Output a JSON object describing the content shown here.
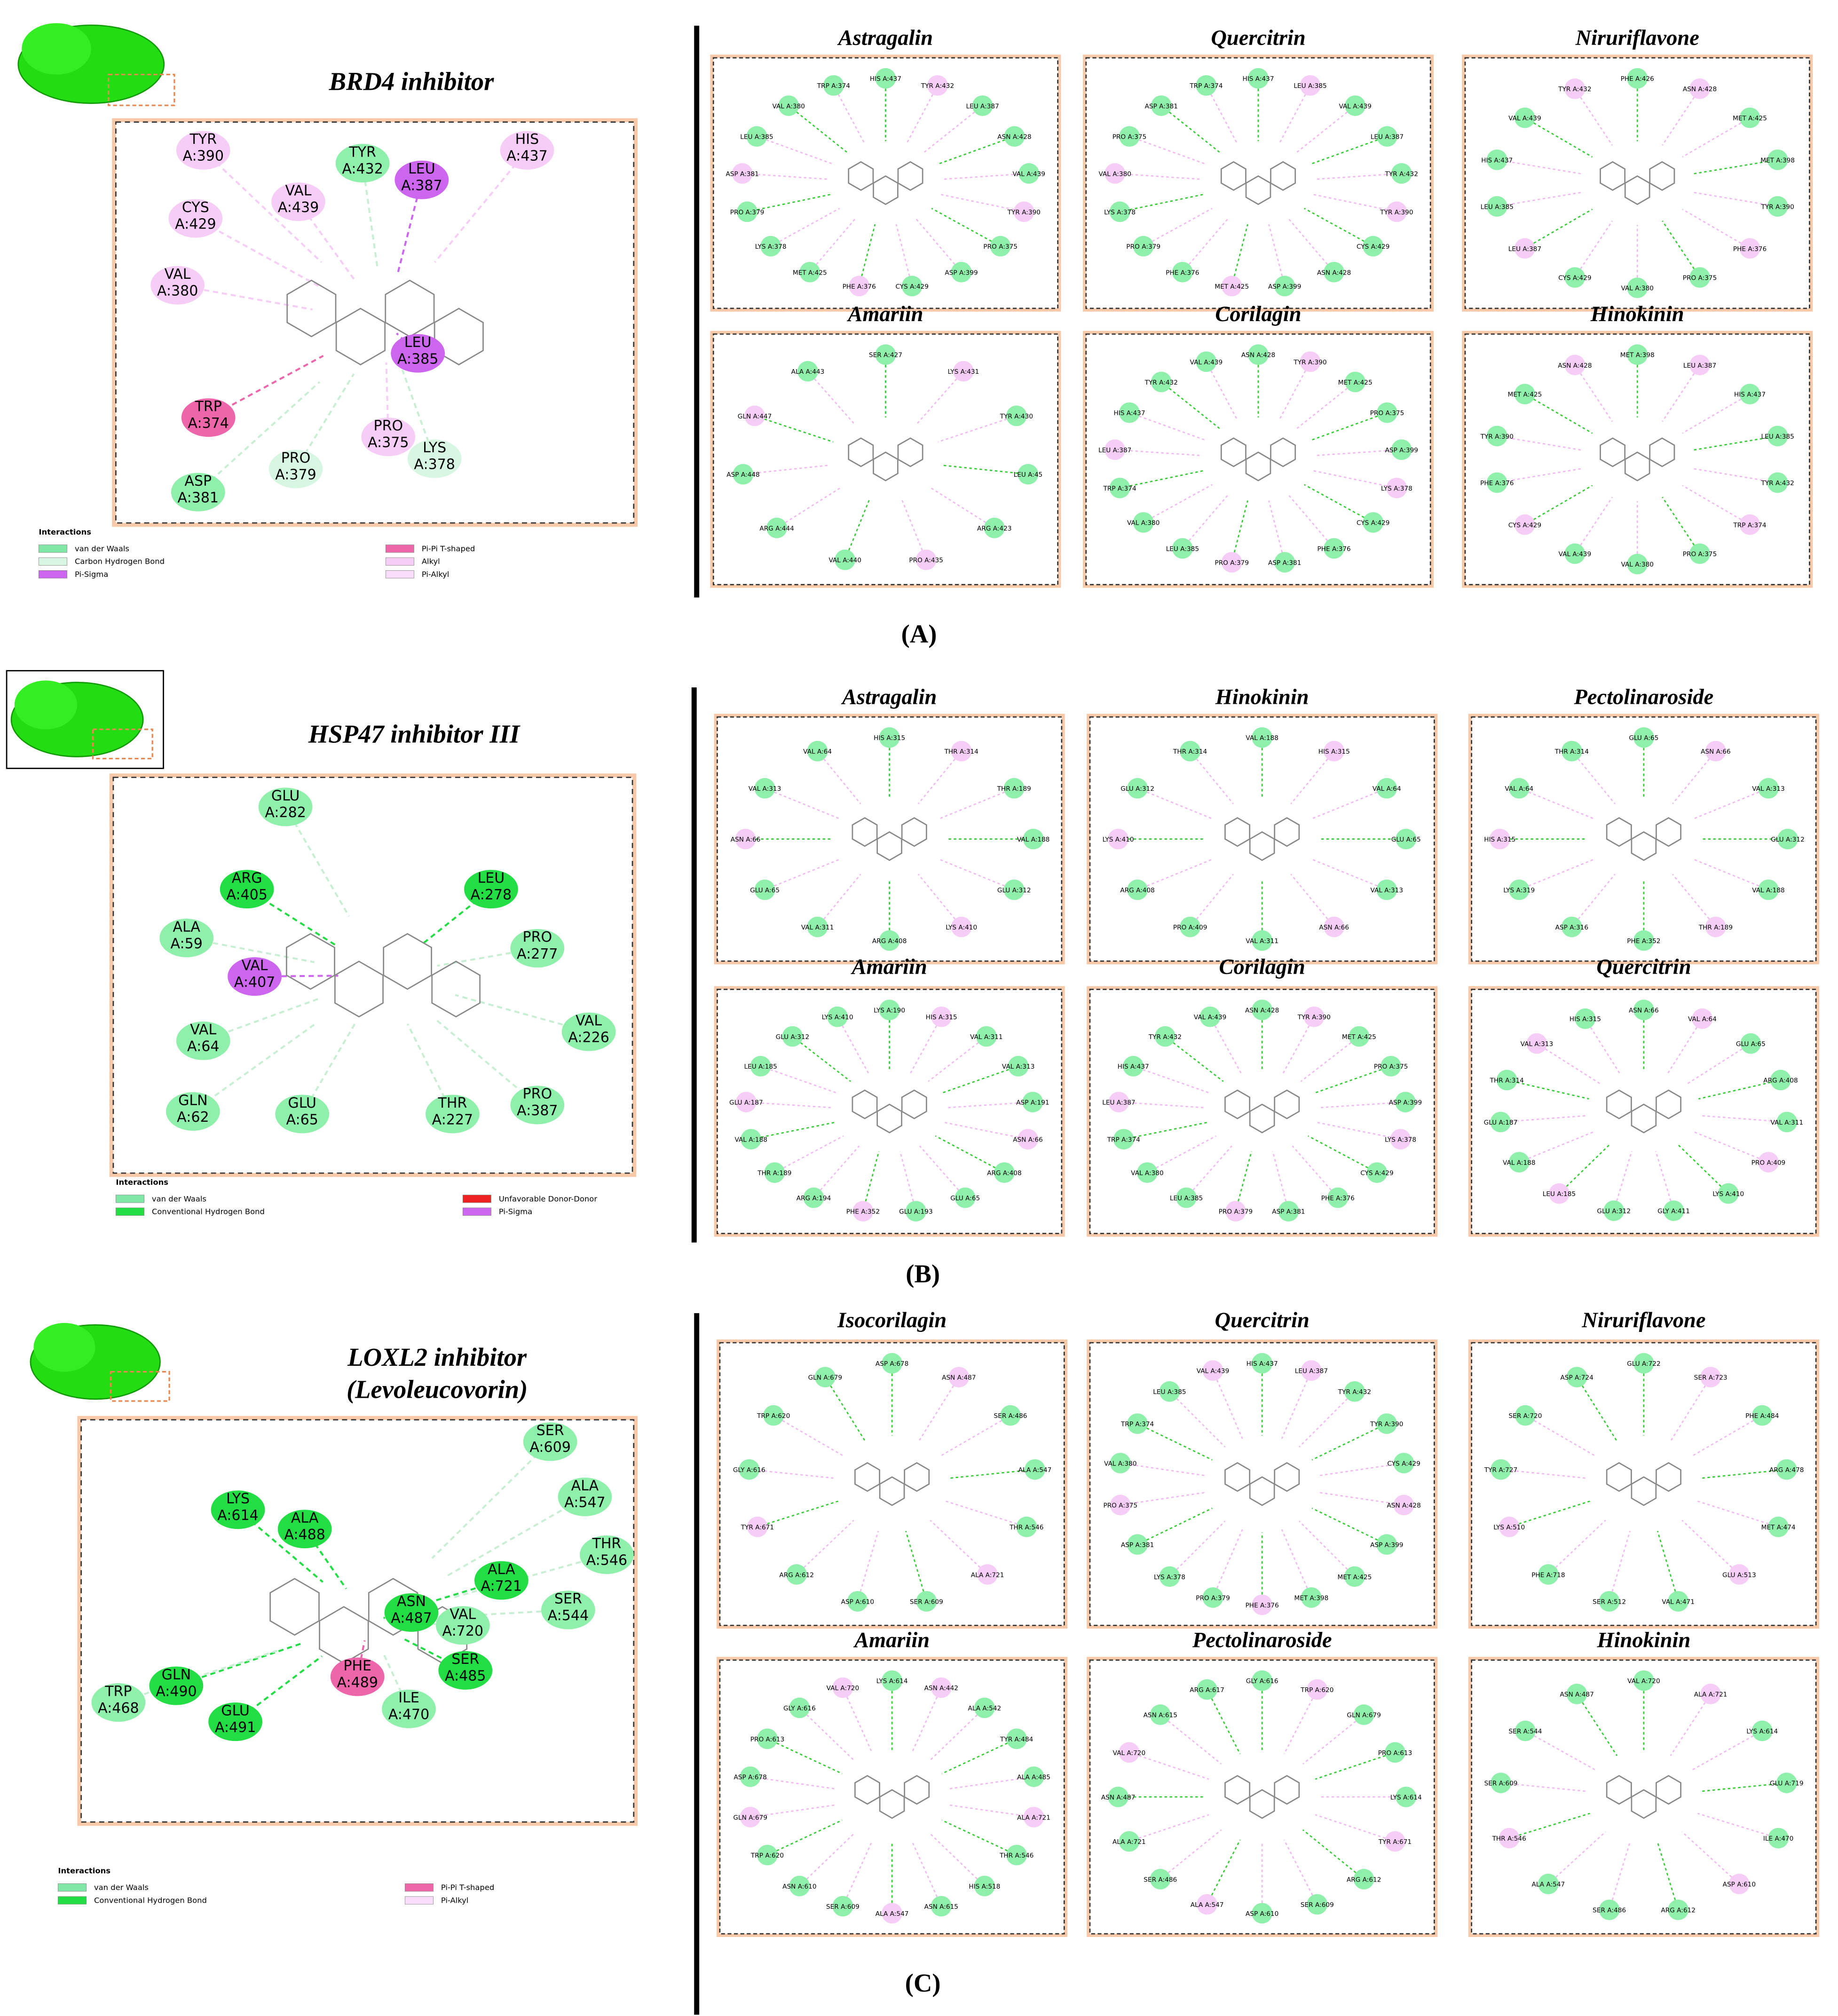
{
  "panels": [
    {
      "label": "(A)",
      "reference": {
        "title": [
          "BRD4 inhibitor"
        ],
        "residues": [
          {
            "name": "TYR",
            "chain": "A:390",
            "color": "#f6cdf6"
          },
          {
            "name": "TYR",
            "chain": "A:432",
            "color": "#8ef0aa"
          },
          {
            "name": "LEU",
            "chain": "A:387",
            "color": "#cc66ee"
          },
          {
            "name": "HIS",
            "chain": "A:437",
            "color": "#f6cdf6"
          },
          {
            "name": "CYS",
            "chain": "A:429",
            "color": "#f6cdf6"
          },
          {
            "name": "VAL",
            "chain": "A:439",
            "color": "#f6cdf6"
          },
          {
            "name": "VAL",
            "chain": "A:380",
            "color": "#f6cdf6"
          },
          {
            "name": "LEU",
            "chain": "A:385",
            "color": "#cc66ee"
          },
          {
            "name": "TRP",
            "chain": "A:374",
            "color": "#ee66aa"
          },
          {
            "name": "PRO",
            "chain": "A:375",
            "color": "#f6cdf6"
          },
          {
            "name": "PRO",
            "chain": "A:379",
            "color": "#d8f7e2"
          },
          {
            "name": "LYS",
            "chain": "A:378",
            "color": "#d8f7e2"
          },
          {
            "name": "ASP",
            "chain": "A:381",
            "color": "#8ef0aa"
          }
        ]
      },
      "legend": {
        "title": "Interactions",
        "items": [
          {
            "label": "van der Waals",
            "color": "#7fe8a6"
          },
          {
            "label": "Carbon Hydrogen Bond",
            "color": "#d8f7e2"
          },
          {
            "label": "Pi-Sigma",
            "color": "#cc66ee"
          },
          {
            "label": "Pi-Pi T-shaped",
            "color": "#ee66aa"
          },
          {
            "label": "Alkyl",
            "color": "#f6cdf6"
          },
          {
            "label": "Pi-Alkyl",
            "color": "#f9dcf9"
          }
        ]
      },
      "complexes": [
        {
          "title": "Astragalin",
          "residues": [
            "HIS A:437",
            "TYR A:432",
            "LEU A:387",
            "ASN A:428",
            "VAL A:439",
            "TYR A:390",
            "PRO A:375",
            "ASP A:399",
            "CYS A:429",
            "PHE A:376",
            "MET A:425",
            "LYS A:378",
            "PRO A:379",
            "ASP A:381",
            "LEU A:385",
            "VAL A:380",
            "TRP A:374"
          ]
        },
        {
          "title": "Quercitrin",
          "residues": [
            "HIS A:437",
            "LEU A:385",
            "VAL A:439",
            "LEU A:387",
            "TYR A:432",
            "TYR A:390",
            "CYS A:429",
            "ASN A:428",
            "ASP A:399",
            "MET A:425",
            "PHE A:376",
            "PRO A:379",
            "LYS A:378",
            "VAL A:380",
            "PRO A:375",
            "ASP A:381",
            "TRP A:374"
          ]
        },
        {
          "title": "Niruriflavone",
          "residues": [
            "PHE A:426",
            "ASN A:428",
            "MET A:425",
            "MET A:398",
            "TYR A:390",
            "PHE A:376",
            "PRO A:375",
            "VAL A:380",
            "CYS A:429",
            "LEU A:387",
            "LEU A:385",
            "HIS A:437",
            "VAL A:439",
            "TYR A:432"
          ]
        },
        {
          "title": "Amariin",
          "residues": [
            "SER A:427",
            "LYS A:431",
            "TYR A:430",
            "LEU A:45",
            "ARG A:423",
            "PRO A:435",
            "VAL A:440",
            "ARG A:444",
            "ASP A:448",
            "GLN A:447",
            "ALA A:443"
          ]
        },
        {
          "title": "Corilagin",
          "residues": [
            "ASN A:428",
            "TYR A:390",
            "MET A:425",
            "PRO A:375",
            "ASP A:399",
            "LYS A:378",
            "CYS A:429",
            "PHE A:376",
            "ASP A:381",
            "PRO A:379",
            "LEU A:385",
            "VAL A:380",
            "TRP A:374",
            "LEU A:387",
            "HIS A:437",
            "TYR A:432",
            "VAL A:439"
          ]
        },
        {
          "title": "Hinokinin",
          "residues": [
            "MET A:398",
            "LEU A:387",
            "HIS A:437",
            "LEU A:385",
            "TYR A:432",
            "TRP A:374",
            "PRO A:375",
            "VAL A:380",
            "VAL A:439",
            "CYS A:429",
            "PHE A:376",
            "TYR A:390",
            "MET A:425",
            "ASN A:428"
          ]
        }
      ]
    },
    {
      "label": "(B)",
      "reference": {
        "title": [
          "HSP47 inhibitor III"
        ],
        "residues": [
          {
            "name": "GLU",
            "chain": "A:282",
            "color": "#8ef0aa"
          },
          {
            "name": "ARG",
            "chain": "A:405",
            "color": "#22dd44"
          },
          {
            "name": "LEU",
            "chain": "A:278",
            "color": "#22dd44"
          },
          {
            "name": "ALA",
            "chain": "A:59",
            "color": "#8ef0aa"
          },
          {
            "name": "PRO",
            "chain": "A:277",
            "color": "#8ef0aa"
          },
          {
            "name": "VAL",
            "chain": "A:407",
            "color": "#cc66ee"
          },
          {
            "name": "VAL",
            "chain": "A:64",
            "color": "#8ef0aa"
          },
          {
            "name": "VAL",
            "chain": "A:226",
            "color": "#8ef0aa"
          },
          {
            "name": "GLN",
            "chain": "A:62",
            "color": "#8ef0aa"
          },
          {
            "name": "GLU",
            "chain": "A:65",
            "color": "#8ef0aa"
          },
          {
            "name": "THR",
            "chain": "A:227",
            "color": "#8ef0aa"
          },
          {
            "name": "PRO",
            "chain": "A:387",
            "color": "#8ef0aa"
          }
        ]
      },
      "legend": {
        "title": "Interactions",
        "items": [
          {
            "label": "van der Waals",
            "color": "#7fe8a6"
          },
          {
            "label": "Conventional Hydrogen Bond",
            "color": "#22dd44"
          },
          {
            "label": "Unfavorable Donor-Donor",
            "color": "#ee2222"
          },
          {
            "label": "Pi-Sigma",
            "color": "#cc66ee"
          }
        ]
      },
      "complexes": [
        {
          "title": "Astragalin",
          "residues": [
            "HIS A:315",
            "THR A:314",
            "THR A:189",
            "VAL A:188",
            "GLU A:312",
            "LYS A:410",
            "ARG A:408",
            "VAL A:311",
            "GLU A:65",
            "ASN A:66",
            "VAL A:313",
            "VAL A:64"
          ]
        },
        {
          "title": "Hinokinin",
          "residues": [
            "VAL A:188",
            "HIS A:315",
            "VAL A:64",
            "GLU A:65",
            "VAL A:313",
            "ASN A:66",
            "VAL A:311",
            "PRO A:409",
            "ARG A:408",
            "LYS A:410",
            "GLU A:312",
            "THR A:314"
          ]
        },
        {
          "title": "Pectolinaroside",
          "residues": [
            "GLU A:65",
            "ASN A:66",
            "VAL A:313",
            "GLU A:312",
            "VAL A:188",
            "THR A:189",
            "PHE A:352",
            "ASP A:316",
            "LYS A:319",
            "HIS A:315",
            "VAL A:64",
            "THR A:314"
          ]
        },
        {
          "title": "Amariin",
          "residues": [
            "LYS A:190",
            "HIS A:315",
            "VAL A:311",
            "VAL A:313",
            "ASP A:191",
            "ASN A:66",
            "ARG A:408",
            "GLU A:65",
            "GLU A:193",
            "PHE A:352",
            "ARG A:194",
            "THR A:189",
            "VAL A:188",
            "GLU A:187",
            "LEU A:185",
            "GLU A:312",
            "LYS A:410"
          ]
        },
        {
          "title": "Corilagin",
          "residues": [
            "ASN A:428",
            "TYR A:390",
            "MET A:425",
            "PRO A:375",
            "ASP A:399",
            "LYS A:378",
            "CYS A:429",
            "PHE A:376",
            "ASP A:381",
            "PRO A:379",
            "LEU A:385",
            "VAL A:380",
            "TRP A:374",
            "LEU A:387",
            "HIS A:437",
            "TYR A:432",
            "VAL A:439"
          ]
        },
        {
          "title": "Quercitrin",
          "residues": [
            "ASN A:66",
            "VAL A:64",
            "GLU A:65",
            "ARG A:408",
            "VAL A:311",
            "PRO A:409",
            "LYS A:410",
            "GLY A:411",
            "GLU A:312",
            "LEU A:185",
            "VAL A:188",
            "GLU A:187",
            "THR A:314",
            "VAL A:313",
            "HIS A:315"
          ]
        }
      ]
    },
    {
      "label": "(C)",
      "reference": {
        "title": [
          "LOXL2 inhibitor",
          "(Levoleucovorin)"
        ],
        "residues": [
          {
            "name": "SER",
            "chain": "A:609",
            "color": "#8ef0aa"
          },
          {
            "name": "ALA",
            "chain": "A:547",
            "color": "#8ef0aa"
          },
          {
            "name": "THR",
            "chain": "A:546",
            "color": "#8ef0aa"
          },
          {
            "name": "LYS",
            "chain": "A:614",
            "color": "#22dd44"
          },
          {
            "name": "ALA",
            "chain": "A:488",
            "color": "#22dd44"
          },
          {
            "name": "ALA",
            "chain": "A:721",
            "color": "#22dd44"
          },
          {
            "name": "ASN",
            "chain": "A:487",
            "color": "#22dd44"
          },
          {
            "name": "VAL",
            "chain": "A:720",
            "color": "#8ef0aa"
          },
          {
            "name": "SER",
            "chain": "A:544",
            "color": "#8ef0aa"
          },
          {
            "name": "SER",
            "chain": "A:485",
            "color": "#22dd44"
          },
          {
            "name": "PHE",
            "chain": "A:489",
            "color": "#ee66aa"
          },
          {
            "name": "GLN",
            "chain": "A:490",
            "color": "#22dd44"
          },
          {
            "name": "GLU",
            "chain": "A:491",
            "color": "#22dd44"
          },
          {
            "name": "TRP",
            "chain": "A:468",
            "color": "#8ef0aa"
          },
          {
            "name": "ILE",
            "chain": "A:470",
            "color": "#8ef0aa"
          }
        ]
      },
      "legend": {
        "title": "Interactions",
        "items": [
          {
            "label": "van der Waals",
            "color": "#7fe8a6"
          },
          {
            "label": "Conventional Hydrogen Bond",
            "color": "#22dd44"
          },
          {
            "label": "Pi-Pi T-shaped",
            "color": "#ee66aa"
          },
          {
            "label": "Pi-Alkyl",
            "color": "#f9dcf9"
          }
        ]
      },
      "complexes": [
        {
          "title": "Isocorilagin",
          "residues": [
            "ASP A:678",
            "ASN A:487",
            "SER A:486",
            "ALA A:547",
            "THR A:546",
            "ALA A:721",
            "SER A:609",
            "ASP A:610",
            "ARG A:612",
            "TYR A:671",
            "GLY A:616",
            "TRP A:620",
            "GLN A:679"
          ]
        },
        {
          "title": "Quercitrin",
          "residues": [
            "HIS A:437",
            "LEU A:387",
            "TYR A:432",
            "TYR A:390",
            "CYS A:429",
            "ASN A:428",
            "ASP A:399",
            "MET A:425",
            "MET A:398",
            "PHE A:376",
            "PRO A:379",
            "LYS A:378",
            "ASP A:381",
            "PRO A:375",
            "VAL A:380",
            "TRP A:374",
            "LEU A:385",
            "VAL A:439"
          ]
        },
        {
          "title": "Niruriflavone",
          "residues": [
            "GLU A:722",
            "SER A:723",
            "PHE A:484",
            "ARG A:478",
            "MET A:474",
            "GLU A:513",
            "VAL A:471",
            "SER A:512",
            "PHE A:718",
            "LYS A:510",
            "TYR A:727",
            "SER A:720",
            "ASP A:724"
          ]
        },
        {
          "title": "Amariin",
          "residues": [
            "LYS A:614",
            "ASN A:442",
            "ALA A:542",
            "TYR A:484",
            "ALA A:485",
            "ALA A:721",
            "THR A:546",
            "HIS A:518",
            "ASN A:615",
            "ALA A:547",
            "SER A:609",
            "ASN A:610",
            "TRP A:620",
            "GLN A:679",
            "ASP A:678",
            "PRO A:613",
            "GLY A:616",
            "VAL A:720"
          ]
        },
        {
          "title": "Pectolinaroside",
          "residues": [
            "GLY A:616",
            "TRP A:620",
            "GLN A:679",
            "PRO A:613",
            "LYS A:614",
            "TYR A:671",
            "ARG A:612",
            "SER A:609",
            "ASP A:610",
            "ALA A:547",
            "SER A:486",
            "ALA A:721",
            "ASN A:487",
            "VAL A:720",
            "ASN A:615",
            "ARG A:617"
          ]
        },
        {
          "title": "Hinokinin",
          "residues": [
            "VAL A:720",
            "ALA A:721",
            "LYS A:614",
            "GLU A:719",
            "ILE A:470",
            "ASP A:610",
            "ARG A:612",
            "SER A:486",
            "ALA A:547",
            "THR A:546",
            "SER A:609",
            "SER A:544",
            "ASN A:487"
          ]
        }
      ]
    }
  ]
}
